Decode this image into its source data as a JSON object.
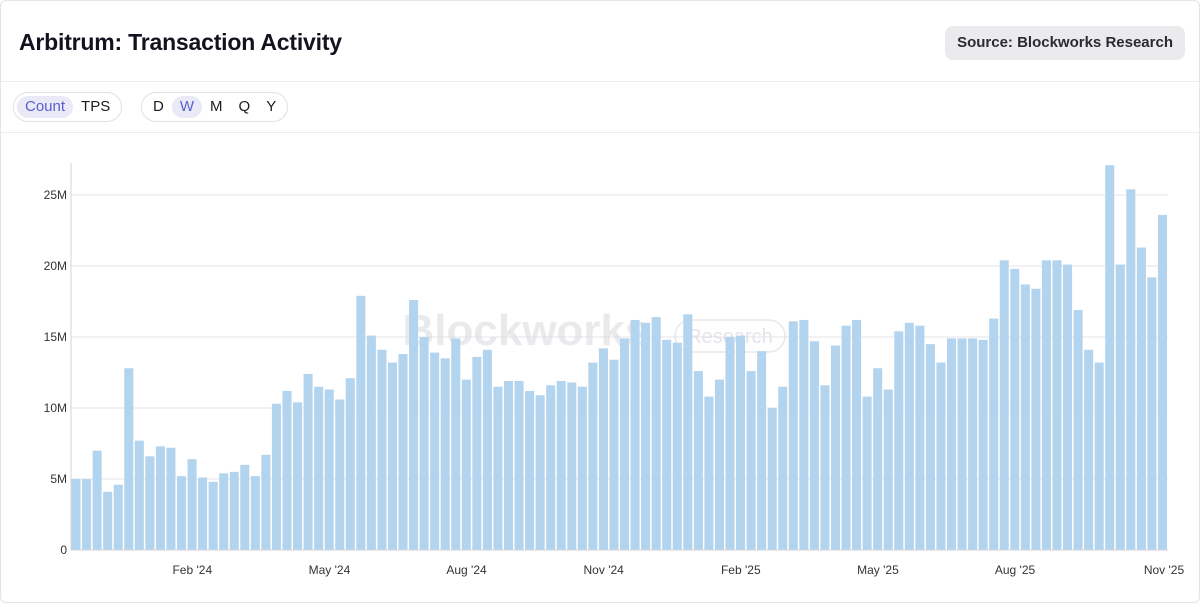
{
  "title": "Arbitrum: Transaction Activity",
  "source": "Source: Blockworks Research",
  "metric_toggle": {
    "options": [
      "Count",
      "TPS"
    ],
    "selected": "Count"
  },
  "period_toggle": {
    "options": [
      "D",
      "W",
      "M",
      "Q",
      "Y"
    ],
    "selected": "W"
  },
  "watermark": {
    "brand": "Blockworks",
    "sub": "Research"
  },
  "colors": {
    "bar": "#b2d4ee",
    "grid": "#e6e6ea",
    "axis_text": "#333333",
    "active_toggle_bg": "#e9e9f8",
    "active_toggle_text": "#5a5fd0"
  },
  "chart_data": {
    "type": "bar",
    "ylim": [
      0,
      27000000
    ],
    "yticks": [
      {
        "value": 0,
        "label": "0"
      },
      {
        "value": 5000000,
        "label": "5M"
      },
      {
        "value": 10000000,
        "label": "10M"
      },
      {
        "value": 15000000,
        "label": "15M"
      },
      {
        "value": 20000000,
        "label": "20M"
      },
      {
        "value": 25000000,
        "label": "25M"
      }
    ],
    "xticks": [
      {
        "index": 11,
        "label": "Feb '24"
      },
      {
        "index": 24,
        "label": "May '24"
      },
      {
        "index": 37,
        "label": "Aug '24"
      },
      {
        "index": 50,
        "label": "Nov '24"
      },
      {
        "index": 63,
        "label": "Feb '25"
      },
      {
        "index": 76,
        "label": "May '25"
      },
      {
        "index": 89,
        "label": "Aug '25"
      },
      {
        "index": 102,
        "label": "Nov '25"
      }
    ],
    "grid": true,
    "legend": "none",
    "values": [
      5.0,
      5.0,
      7.0,
      4.1,
      4.6,
      12.8,
      7.7,
      6.6,
      7.3,
      7.2,
      5.2,
      6.4,
      5.1,
      4.8,
      5.4,
      5.5,
      6.0,
      5.2,
      6.7,
      10.3,
      11.2,
      10.4,
      12.4,
      11.5,
      11.3,
      10.6,
      12.1,
      17.9,
      15.1,
      14.1,
      13.2,
      13.8,
      17.6,
      15.0,
      13.9,
      13.5,
      14.9,
      12.0,
      13.6,
      14.1,
      11.5,
      11.9,
      11.9,
      11.2,
      10.9,
      11.6,
      11.9,
      11.8,
      11.5,
      13.2,
      14.2,
      13.4,
      14.9,
      16.2,
      16.0,
      16.4,
      14.8,
      14.6,
      16.6,
      12.6,
      10.8,
      12.0,
      15.0,
      15.1,
      12.6,
      14.0,
      10.0,
      11.5,
      16.1,
      16.2,
      14.7,
      11.6,
      14.4,
      15.8,
      16.2,
      10.8,
      12.8,
      11.3,
      15.4,
      16.0,
      15.8,
      14.5,
      13.2,
      14.9,
      14.9,
      14.9,
      14.8,
      16.3,
      20.4,
      19.8,
      18.7,
      18.4,
      20.4,
      20.4,
      20.1,
      16.9,
      14.1,
      13.2,
      27.1,
      20.1,
      25.4,
      21.3,
      19.2,
      23.6
    ],
    "values_unit": "millions"
  }
}
